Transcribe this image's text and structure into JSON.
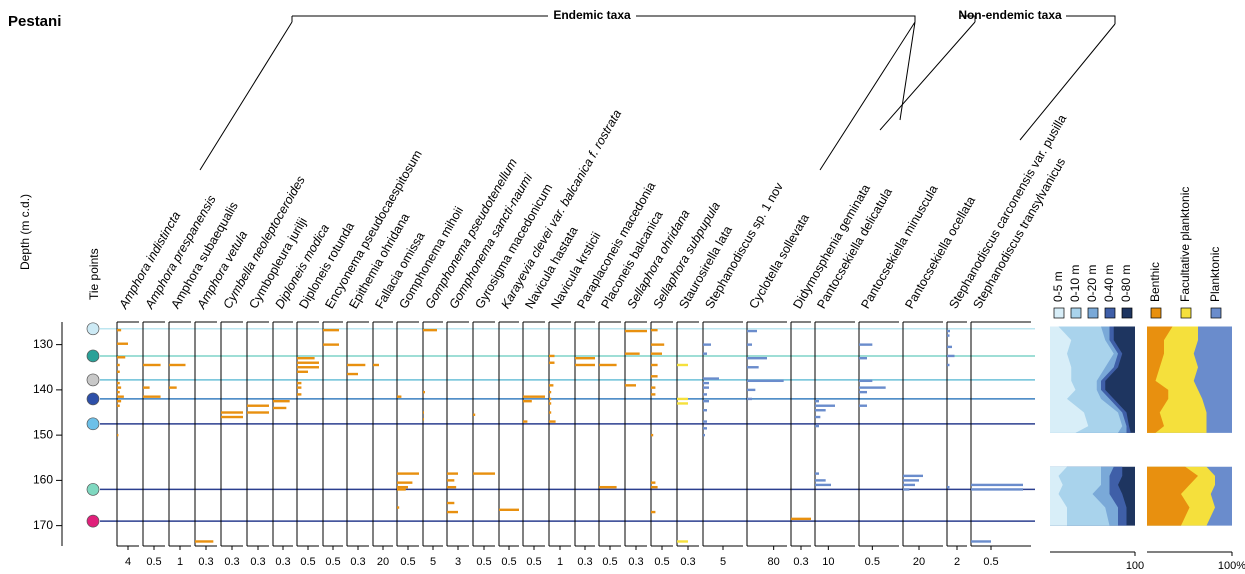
{
  "chart_data": {
    "type": "stratigraphic",
    "title": "Pestani",
    "ylabel": "Depth (m c.d.)",
    "tie_label": "Tie points",
    "groups": [
      "Endemic taxa",
      "Non-endemic taxa"
    ],
    "ylim": [
      125,
      174.5
    ],
    "yticks": [
      130,
      140,
      150,
      160,
      170
    ],
    "tie_points": [
      {
        "depth": 126.5,
        "color": "#cdeaf5",
        "line_color": "#bde6f0"
      },
      {
        "depth": 132.5,
        "color": "#2aa198",
        "line_color": "#7fd3c8"
      },
      {
        "depth": 137.8,
        "color": "#c8c8c8",
        "line_color": "#6cc0d8"
      },
      {
        "depth": 142,
        "color": "#2d4fa8",
        "line_color": "#3a7fc0"
      },
      {
        "depth": 147.5,
        "color": "#6cc0e8",
        "line_color": "#2b3f8f"
      },
      {
        "depth": 162,
        "color": "#7fd8c0",
        "line_color": "#2b3f8f"
      },
      {
        "depth": 169,
        "color": "#e0207a",
        "line_color": "#2b3f8f"
      }
    ],
    "taxa": [
      {
        "name": "Amphora indistincta",
        "label_color": "#3aa335",
        "bar_color": "#e8900f",
        "xlim": [
          0,
          8
        ],
        "xticks": [
          4
        ],
        "depths": [
          126.8,
          129.8,
          132.8,
          134.5,
          136,
          138.5,
          139.5,
          140.5,
          141.5,
          142.5,
          143.5,
          150
        ],
        "values": [
          1.5,
          4,
          3,
          1,
          1,
          1,
          1.5,
          1,
          2.5,
          1.5,
          1,
          0.5
        ]
      },
      {
        "name": "Amphora prespanensis",
        "label_color": "#3aa335",
        "bar_color": "#e8900f",
        "xlim": [
          0,
          1
        ],
        "xticks": [
          0.5
        ],
        "depths": [
          134.5,
          139.5,
          141.5
        ],
        "values": [
          0.8,
          0.3,
          0.8
        ]
      },
      {
        "name": "Amphora subaequalis",
        "label_color": "#000000",
        "bar_color": "#e8900f",
        "xlim": [
          0,
          2
        ],
        "xticks": [
          1
        ],
        "depths": [
          134.5,
          139.5
        ],
        "values": [
          1.5,
          0.7
        ]
      },
      {
        "name": "Amphora vetula",
        "label_color": "#3aa335",
        "bar_color": "#e8900f",
        "xlim": [
          0,
          0.6
        ],
        "xticks": [
          0.3
        ],
        "depths": [
          173.5
        ],
        "values": [
          0.5
        ]
      },
      {
        "name": "Cymbella neoleptoceroides",
        "label_color": "#4a6abf",
        "bar_color": "#e8900f",
        "xlim": [
          0,
          0.6
        ],
        "xticks": [
          0.3
        ],
        "depths": [
          145,
          146
        ],
        "values": [
          0.6,
          0.6
        ]
      },
      {
        "name": "Cymbopleura jurilji",
        "label_color": "#000000",
        "bar_color": "#e8900f",
        "xlim": [
          0,
          0.6
        ],
        "xticks": [
          0.3
        ],
        "depths": [
          143.5,
          145
        ],
        "values": [
          0.6,
          0.6
        ]
      },
      {
        "name": "Diploneis modica",
        "label_color": "#3aa335",
        "bar_color": "#e8900f",
        "xlim": [
          0,
          0.6
        ],
        "xticks": [
          0.3
        ],
        "depths": [
          142.5,
          144
        ],
        "values": [
          0.5,
          0.4
        ]
      },
      {
        "name": "Diploneis rotunda",
        "label_color": "#000000",
        "bar_color": "#e8900f",
        "xlim": [
          0,
          1
        ],
        "xticks": [
          0.5
        ],
        "depths": [
          133,
          134,
          135,
          136,
          138.5,
          139.5,
          141
        ],
        "values": [
          0.8,
          1,
          1,
          0.5,
          0.2,
          0.2,
          0.2
        ]
      },
      {
        "name": "Encyonema pseudocaespitosum",
        "label_color": "#000000",
        "bar_color": "#e8900f",
        "xlim": [
          0,
          1
        ],
        "xticks": [
          0.5
        ],
        "depths": [
          126.8,
          130
        ],
        "values": [
          0.8,
          0.8
        ]
      },
      {
        "name": "Epithemia ohridana",
        "label_color": "#000000",
        "bar_color": "#e8900f",
        "xlim": [
          0,
          0.6
        ],
        "xticks": [
          0.3
        ],
        "depths": [
          134.5,
          136.5
        ],
        "values": [
          0.5,
          0.3
        ]
      },
      {
        "name": "Fallacia omissa",
        "label_color": "#000000",
        "bar_color": "#e8900f",
        "xlim": [
          0,
          40
        ],
        "xticks": [
          20
        ],
        "depths": [
          134.5
        ],
        "values": [
          12
        ]
      },
      {
        "name": "Gomphonema mihoii",
        "label_color": "#000000",
        "bar_color": "#e8900f",
        "xlim": [
          0,
          1
        ],
        "xticks": [
          0.5
        ],
        "depths": [
          141.5,
          158.5,
          160.5,
          161.5,
          162,
          166
        ],
        "values": [
          0.2,
          1,
          0.7,
          0.5,
          0.4,
          0.1
        ]
      },
      {
        "name": "Gomphonema pseudotenellum",
        "label_color": "#4a6abf",
        "bar_color": "#e8900f",
        "xlim": [
          0,
          10
        ],
        "xticks": [
          5
        ],
        "depths": [
          126.8,
          140.5,
          145,
          146.5
        ],
        "values": [
          7,
          1,
          0.5,
          0.5
        ]
      },
      {
        "name": "Gomphonema sancti-naumi",
        "label_color": "#4a6abf",
        "bar_color": "#e8900f",
        "xlim": [
          0,
          6
        ],
        "xticks": [
          3
        ],
        "depths": [
          158.5,
          160,
          161.5,
          165,
          167
        ],
        "values": [
          3,
          2,
          2.5,
          2,
          3
        ]
      },
      {
        "name": "Gyrosigma macedonicum",
        "label_color": "#000000",
        "bar_color": "#e8900f",
        "xlim": [
          0,
          1
        ],
        "xticks": [
          0.5
        ],
        "depths": [
          145.5,
          158.5
        ],
        "values": [
          0.1,
          1
        ]
      },
      {
        "name": "Karayevia clevei var. balcanica f. rostrata",
        "label_color": "#3aa335",
        "bar_color": "#e8900f",
        "xlim": [
          0,
          1
        ],
        "xticks": [
          0.5
        ],
        "depths": [
          166.5
        ],
        "values": [
          1
        ]
      },
      {
        "name": "Navicula hastata",
        "label_color": "#000000",
        "bar_color": "#e8900f",
        "xlim": [
          0,
          1
        ],
        "xticks": [
          0.5
        ],
        "depths": [
          141.5,
          142.5,
          147
        ],
        "values": [
          1,
          0.4,
          0.2
        ]
      },
      {
        "name": "Navicula krsticii",
        "label_color": "#000000",
        "bar_color": "#e8900f",
        "xlim": [
          0,
          2
        ],
        "xticks": [
          1
        ],
        "depths": [
          132.5,
          134,
          139,
          140.5,
          142,
          143,
          145,
          147
        ],
        "values": [
          0.5,
          0.5,
          0.4,
          0.2,
          0.2,
          0.2,
          0.2,
          0.6
        ]
      },
      {
        "name": "Paraplaconeis macedonia",
        "label_color": "#000000",
        "bar_color": "#e8900f",
        "xlim": [
          0,
          0.6
        ],
        "xticks": [
          0.3
        ],
        "depths": [
          133,
          134.5
        ],
        "values": [
          0.6,
          0.6
        ]
      },
      {
        "name": "Placoneis balcanica",
        "label_color": "#000000",
        "bar_color": "#e8900f",
        "xlim": [
          0,
          1
        ],
        "xticks": [
          0.5
        ],
        "depths": [
          134.5,
          161.5
        ],
        "values": [
          0.8,
          0.8
        ]
      },
      {
        "name": "Sellaphora ohridana",
        "label_color": "#4a6abf",
        "bar_color": "#e8900f",
        "xlim": [
          0,
          0.6
        ],
        "xticks": [
          0.3
        ],
        "depths": [
          127,
          132,
          139
        ],
        "values": [
          0.6,
          0.4,
          0.3
        ]
      },
      {
        "name": "Sellaphora subpupula",
        "label_color": "#3aa335",
        "bar_color": "#e8900f",
        "xlim": [
          0,
          1
        ],
        "xticks": [
          0.5
        ],
        "depths": [
          126.8,
          130,
          132,
          134.5,
          137,
          139.5,
          141,
          150,
          160.5,
          161.5,
          167
        ],
        "values": [
          0.3,
          0.6,
          0.5,
          0.3,
          0.3,
          0.2,
          0.2,
          0.1,
          0.2,
          0.3,
          0.2
        ]
      },
      {
        "name": "Staurosirella lata",
        "label_color": "#000000",
        "bar_color": "#f5e03c",
        "xlim": [
          0,
          0.6
        ],
        "xticks": [
          0.3
        ],
        "depths": [
          134.5,
          142,
          143,
          173.5
        ],
        "values": [
          0.3,
          0.3,
          0.3,
          0.3
        ]
      },
      {
        "name": "Stephanodiscus sp. 1 nov",
        "label_color": "#000000",
        "bar_color": "#6a8ccc",
        "xlim": [
          0,
          10
        ],
        "xticks": [
          5
        ],
        "depths": [
          130,
          132,
          137.5,
          138.5,
          139.5,
          141,
          142.5,
          144.5,
          147,
          148.5,
          150
        ],
        "values": [
          2,
          1,
          4,
          1.5,
          1.5,
          1,
          1.5,
          1,
          1,
          1,
          0.5
        ]
      },
      {
        "name": "Cyclotella sollevata",
        "label_color": "#000000",
        "bar_color": "#6a8ccc",
        "xlim": [
          0,
          120
        ],
        "xticks": [
          80
        ],
        "depths": [
          127,
          130,
          133,
          135,
          138,
          140,
          142
        ],
        "values": [
          30,
          15,
          60,
          35,
          110,
          25,
          15
        ]
      },
      {
        "name": "Didymosphenia geminata",
        "label_color": "#000000",
        "bar_color": "#e8900f",
        "xlim": [
          0,
          0.6
        ],
        "xticks": [
          0.3
        ],
        "depths": [
          168.5
        ],
        "values": [
          0.6
        ]
      },
      {
        "name": "Pantocsekiella delicatula",
        "label_color": "#000000",
        "bar_color": "#6a8ccc",
        "xlim": [
          0,
          30
        ],
        "xticks": [
          10
        ],
        "depths": [
          142.5,
          143.5,
          144.5,
          146,
          148,
          158.5,
          160,
          161
        ],
        "values": [
          3,
          15,
          8,
          4,
          3,
          3,
          8,
          12
        ]
      },
      {
        "name": "Pantocsekiella minuscula",
        "label_color": "#000000",
        "bar_color": "#6a8ccc",
        "xlim": [
          0,
          1.5
        ],
        "xticks": [
          0.5
        ],
        "depths": [
          130,
          133,
          138,
          139.5,
          140.5,
          143.5
        ],
        "values": [
          0.5,
          0.3,
          0.5,
          1,
          0.3,
          0.3
        ]
      },
      {
        "name": "Pantocsekiella ocellata",
        "label_color": "#000000",
        "bar_color": "#6a8ccc",
        "xlim": [
          0,
          50
        ],
        "xticks": [
          20
        ],
        "depths": [
          159,
          160,
          161,
          162
        ],
        "values": [
          25,
          20,
          15,
          8
        ]
      },
      {
        "name": "Stephanodiscus carconensis var. pusilla",
        "label_color": "#000000",
        "bar_color": "#6a8ccc",
        "xlim": [
          0,
          4
        ],
        "xticks": [
          2
        ],
        "depths": [
          127,
          128,
          130.5,
          132.5,
          134.5,
          161.5
        ],
        "values": [
          0.6,
          0.5,
          1,
          1.5,
          0.5,
          0.5
        ]
      },
      {
        "name": "Stephanodiscus transylvanicus",
        "label_color": "#000000",
        "bar_color": "#6a8ccc",
        "xlim": [
          0,
          1.5
        ],
        "xticks": [
          0.5
        ],
        "depths": [
          161,
          162,
          173.5
        ],
        "values": [
          1.3,
          1.3,
          0.5
        ]
      }
    ],
    "panels": [
      {
        "depths": [
          126,
          129,
          132,
          135,
          138,
          140,
          142,
          145,
          148,
          149.5,
          153,
          157,
          159,
          161,
          163,
          166,
          170
        ],
        "xlim": [
          0,
          100
        ],
        "xticks": [
          100
        ],
        "series": [
          {
            "name": "0-5 m",
            "color": "#d8eef8",
            "values": [
              10,
              25,
              20,
              25,
              25,
              30,
              20,
              40,
              45,
              30,
              null,
              20,
              10,
              15,
              10,
              20,
              20
            ]
          },
          {
            "name": "0-10 m",
            "color": "#a9d3ec",
            "values": [
              50,
              40,
              55,
              40,
              30,
              25,
              40,
              40,
              40,
              50,
              null,
              40,
              50,
              45,
              40,
              45,
              50
            ]
          },
          {
            "name": "0-20 m",
            "color": "#7aa9d8",
            "values": [
              10,
              5,
              5,
              10,
              5,
              5,
              10,
              5,
              5,
              10,
              null,
              15,
              10,
              10,
              20,
              15,
              10
            ]
          },
          {
            "name": "0-40 m",
            "color": "#3f5fa8",
            "values": [
              5,
              5,
              5,
              5,
              5,
              5,
              5,
              5,
              3,
              5,
              null,
              10,
              15,
              10,
              15,
              10,
              10
            ]
          },
          {
            "name": "0-80 m",
            "color": "#1e3560",
            "values": [
              25,
              25,
              15,
              20,
              35,
              35,
              25,
              10,
              7,
              5,
              null,
              15,
              15,
              20,
              15,
              10,
              10
            ]
          }
        ]
      },
      {
        "depths": [
          126,
          129,
          132,
          135,
          138,
          140,
          142,
          145,
          148,
          149.5,
          153,
          157,
          159,
          161,
          163,
          166,
          170
        ],
        "xlim": [
          0,
          100
        ],
        "xticks": [
          {
            "value": 100,
            "label": "100%"
          }
        ],
        "series": [
          {
            "name": "Benthic",
            "color": "#e8900f",
            "values": [
              30,
              20,
              20,
              15,
              10,
              25,
              25,
              15,
              20,
              10,
              null,
              45,
              60,
              50,
              40,
              50,
              40
            ]
          },
          {
            "name": "Facultative planktonic",
            "color": "#f5e03c",
            "values": [
              30,
              40,
              35,
              45,
              45,
              35,
              40,
              55,
              50,
              60,
              null,
              25,
              20,
              30,
              35,
              30,
              30
            ]
          },
          {
            "name": "Planktonic",
            "color": "#6a8ccc",
            "values": [
              40,
              40,
              45,
              40,
              45,
              40,
              35,
              30,
              30,
              30,
              null,
              30,
              20,
              20,
              25,
              20,
              30
            ]
          }
        ]
      }
    ]
  }
}
